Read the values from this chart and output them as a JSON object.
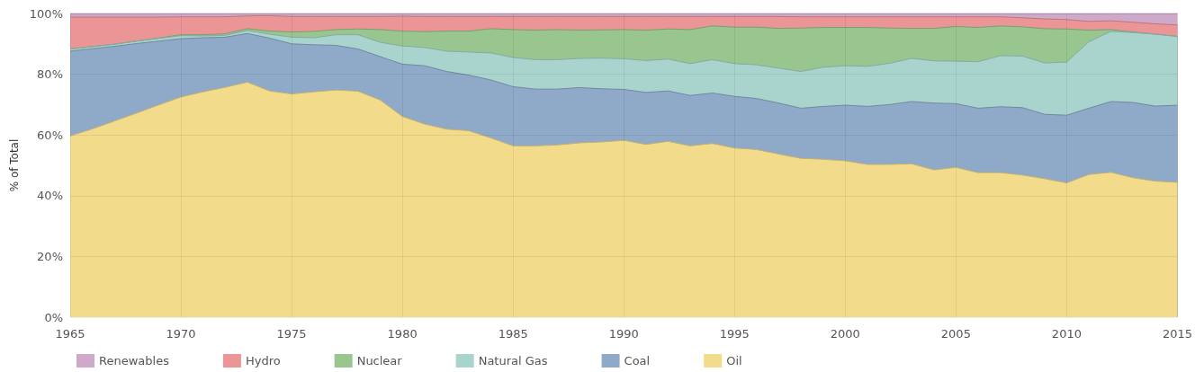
{
  "chart_data": {
    "type": "area",
    "stacked": true,
    "ylabel": "% of Total",
    "x": [
      1965,
      1966,
      1967,
      1968,
      1969,
      1970,
      1971,
      1972,
      1973,
      1974,
      1975,
      1976,
      1977,
      1978,
      1979,
      1980,
      1981,
      1982,
      1983,
      1984,
      1985,
      1986,
      1987,
      1988,
      1989,
      1990,
      1991,
      1992,
      1993,
      1994,
      1995,
      1996,
      1997,
      1998,
      1999,
      2000,
      2001,
      2002,
      2003,
      2004,
      2005,
      2006,
      2007,
      2008,
      2009,
      2010,
      2011,
      2012,
      2013,
      2014,
      2015
    ],
    "series": [
      {
        "name": "Oil",
        "color": "#f2dc8c",
        "values": [
          59.7,
          62.0,
          64.6,
          67.2,
          69.9,
          72.5,
          74.2,
          75.7,
          77.4,
          74.5,
          73.5,
          74.2,
          74.8,
          74.4,
          71.5,
          66.1,
          63.6,
          61.9,
          61.4,
          59.0,
          56.4,
          56.4,
          56.7,
          57.4,
          57.7,
          58.2,
          56.9,
          57.9,
          56.4,
          57.2,
          55.7,
          55.2,
          53.7,
          52.3,
          52.0,
          51.5,
          50.3,
          50.3,
          50.5,
          48.5,
          49.3,
          47.6,
          47.6,
          46.8,
          45.6,
          44.2,
          47.0,
          47.7,
          45.9,
          44.8,
          44.4
        ]
      },
      {
        "name": "Coal",
        "color": "#8eaac8",
        "values": [
          27.9,
          26.4,
          24.6,
          22.9,
          21.0,
          19.2,
          17.8,
          16.5,
          16.0,
          17.4,
          16.5,
          15.5,
          14.7,
          13.9,
          14.3,
          17.2,
          19.2,
          19.0,
          18.3,
          19.1,
          19.5,
          18.7,
          18.4,
          18.2,
          17.5,
          16.8,
          17.1,
          16.6,
          16.6,
          16.6,
          17.0,
          16.8,
          16.8,
          16.5,
          17.4,
          18.3,
          19.1,
          19.7,
          20.5,
          22.0,
          21.0,
          21.2,
          21.7,
          22.2,
          21.2,
          22.3,
          21.8,
          23.3,
          24.8,
          24.7,
          25.4
        ]
      },
      {
        "name": "Natural Gas",
        "color": "#a9d3cd",
        "values": [
          0.7,
          0.7,
          0.7,
          0.8,
          0.9,
          1.0,
          0.6,
          0.6,
          1.0,
          1.3,
          2.2,
          2.3,
          3.5,
          4.7,
          4.7,
          6.0,
          6.0,
          6.7,
          7.6,
          8.9,
          9.6,
          9.7,
          9.7,
          9.6,
          10.1,
          10.1,
          10.5,
          10.5,
          10.5,
          11.0,
          10.8,
          11.1,
          11.5,
          12.1,
          12.9,
          13.0,
          13.2,
          13.6,
          14.2,
          13.9,
          14.0,
          15.3,
          16.8,
          17.0,
          16.9,
          17.5,
          21.9,
          23.1,
          23.0,
          23.7,
          22.6
        ]
      },
      {
        "name": "Nuclear",
        "color": "#98c68e",
        "values": [
          0,
          0,
          0,
          0,
          0.1,
          0.3,
          0.4,
          0.5,
          0.6,
          1.0,
          1.7,
          2.1,
          1.7,
          1.9,
          4.2,
          4.9,
          5.2,
          6.6,
          6.9,
          8.0,
          9.2,
          9.7,
          9.9,
          9.3,
          9.3,
          9.6,
          10.0,
          9.9,
          11.2,
          11.1,
          12.0,
          12.4,
          13.1,
          14.3,
          13.1,
          12.6,
          12.8,
          11.6,
          9.9,
          10.7,
          11.4,
          11.3,
          9.8,
          9.6,
          11.3,
          10.9,
          3.8,
          0.6,
          0.2,
          0,
          0.1
        ]
      },
      {
        "name": "Hydro",
        "color": "#ec9596",
        "values": [
          10.5,
          9.7,
          8.9,
          7.9,
          6.9,
          5.9,
          5.9,
          5.6,
          4.2,
          5.1,
          5.1,
          4.9,
          4.3,
          4.1,
          4.3,
          4.9,
          5.0,
          4.8,
          4.8,
          4.0,
          4.3,
          4.5,
          4.3,
          4.5,
          4.4,
          4.3,
          4.5,
          4.1,
          4.3,
          3.1,
          3.5,
          3.5,
          3.9,
          3.7,
          3.5,
          3.5,
          3.5,
          3.7,
          3.8,
          3.8,
          3.2,
          3.5,
          3.0,
          3.0,
          3.2,
          3.1,
          2.9,
          2.9,
          3.2,
          3.4,
          3.7
        ]
      },
      {
        "name": "Renewables",
        "color": "#cfa9c9",
        "values": [
          1.2,
          1.2,
          1.2,
          1.2,
          1.2,
          1.1,
          1.1,
          1.1,
          0.8,
          0.7,
          1.0,
          1.0,
          1.0,
          1.0,
          1.0,
          0.9,
          1.0,
          1.0,
          1.0,
          1.0,
          1.0,
          1.0,
          1.0,
          1.0,
          1.0,
          1.0,
          1.0,
          1.0,
          1.0,
          1.0,
          1.0,
          1.0,
          1.0,
          1.1,
          1.1,
          1.1,
          1.1,
          1.1,
          1.1,
          1.1,
          1.1,
          1.1,
          1.1,
          1.4,
          1.8,
          2.0,
          2.6,
          2.4,
          2.9,
          3.4,
          3.8
        ]
      }
    ],
    "xlim": [
      1965,
      2015
    ],
    "xticks": [
      1965,
      1970,
      1975,
      1980,
      1985,
      1990,
      1995,
      2000,
      2005,
      2010,
      2015
    ],
    "ylim": [
      0,
      100
    ],
    "yticks": [
      {
        "value": 0,
        "label": "0%"
      },
      {
        "value": 20,
        "label": "20%"
      },
      {
        "value": 40,
        "label": "40%"
      },
      {
        "value": 60,
        "label": "60%"
      },
      {
        "value": 80,
        "label": "80%"
      },
      {
        "value": 100,
        "label": "100%"
      }
    ],
    "grid": true,
    "legend": "bottom left"
  }
}
